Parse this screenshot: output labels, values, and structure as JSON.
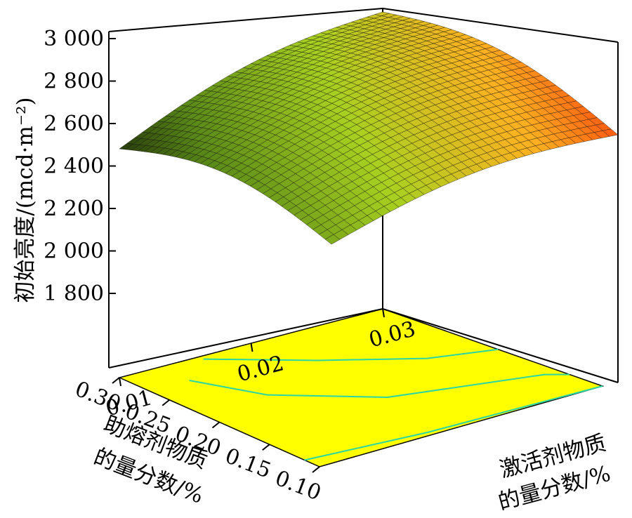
{
  "chart_data": {
    "type": "surface",
    "zlabel": "初始亮度/(mcd·m⁻²)",
    "z_ticks": [
      "1 800",
      "2 000",
      "2 200",
      "2 400",
      "2 600",
      "2 800",
      "3 000"
    ],
    "z_tick_values": [
      1800,
      2000,
      2200,
      2400,
      2600,
      2800,
      3000
    ],
    "zlim": [
      1650,
      3000
    ],
    "x_axis": {
      "label_line1": "助熔剂物质",
      "label_line2": "的量分数/%",
      "ticks": [
        "0.10",
        "0.15",
        "0.20",
        "0.25",
        "0.30"
      ],
      "tick_values": [
        0.1,
        0.15,
        0.2,
        0.25,
        0.3
      ],
      "range": [
        0.1,
        0.3
      ]
    },
    "y_axis": {
      "label_line1": "激活剂物质",
      "label_line2": "的量分数/%",
      "ticks": [
        "0.01",
        "0.02",
        "0.03"
      ],
      "tick_values": [
        0.01,
        0.02,
        0.03
      ],
      "range": [
        0.01,
        0.03
      ]
    },
    "surface_corners": [
      {
        "flux": 0.3,
        "activator": 0.01,
        "brightness": 2470
      },
      {
        "flux": 0.3,
        "activator": 0.03,
        "brightness": 3000
      },
      {
        "flux": 0.1,
        "activator": 0.03,
        "brightness": 2530
      },
      {
        "flux": 0.1,
        "activator": 0.01,
        "brightness": 2000
      }
    ],
    "floor_contour": true,
    "floor_color": "#ffff00",
    "contour_color": "#2ad6a4",
    "colormap": [
      "#000000",
      "#5a8a18",
      "#a8d020",
      "#ffb020",
      "#ff0000"
    ]
  }
}
